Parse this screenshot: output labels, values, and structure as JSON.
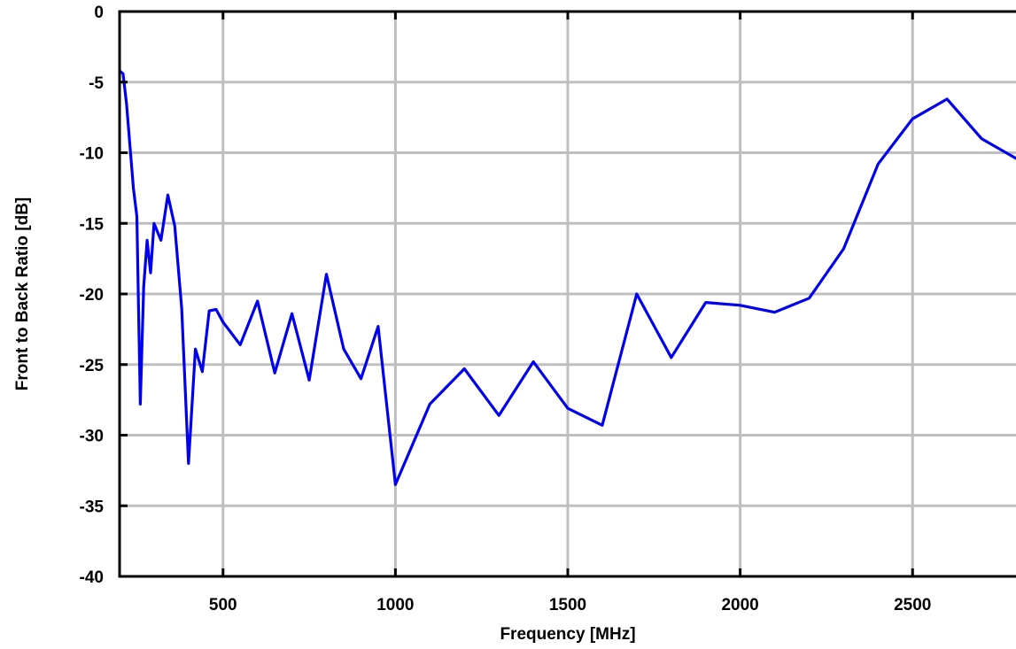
{
  "chart_data": {
    "type": "line",
    "title": "",
    "xlabel": "Frequency [MHz]",
    "ylabel": "Front to Back Ratio [dB]",
    "xlim": [
      200,
      2800
    ],
    "ylim": [
      -40,
      0
    ],
    "xticks": [
      500,
      1000,
      1500,
      2000,
      2500
    ],
    "yticks": [
      0,
      -5,
      -10,
      -15,
      -20,
      -25,
      -30,
      -35,
      -40
    ],
    "grid": true,
    "legend": "none",
    "line_color": "#0000ee",
    "series": [
      {
        "x": [
          200,
          210,
          220,
          240,
          250,
          260,
          270,
          280,
          290,
          300,
          320,
          340,
          360,
          380,
          400,
          420,
          440,
          460,
          480,
          500,
          550,
          600,
          650,
          700,
          750,
          800,
          850,
          900,
          950,
          1000,
          1100,
          1200,
          1300,
          1400,
          1500,
          1600,
          1700,
          1800,
          1900,
          2000,
          2100,
          2200,
          2300,
          2400,
          2500,
          2600,
          2700,
          2800
        ],
        "y": [
          -4.2,
          -4.4,
          -6.5,
          -12.5,
          -14.5,
          -27.8,
          -19.5,
          -16.2,
          -18.5,
          -15.0,
          -16.2,
          -13.0,
          -15.2,
          -21.0,
          -32.0,
          -23.9,
          -25.5,
          -21.2,
          -21.1,
          -22.0,
          -23.6,
          -20.5,
          -25.6,
          -21.4,
          -26.1,
          -18.6,
          -23.9,
          -26.0,
          -22.3,
          -33.5,
          -27.8,
          -25.3,
          -28.6,
          -24.8,
          -28.1,
          -29.3,
          -20.0,
          -24.5,
          -20.6,
          -20.8,
          -21.3,
          -20.3,
          -16.8,
          -10.8,
          -7.6,
          -6.2,
          -9.0,
          -10.4
        ]
      }
    ]
  }
}
